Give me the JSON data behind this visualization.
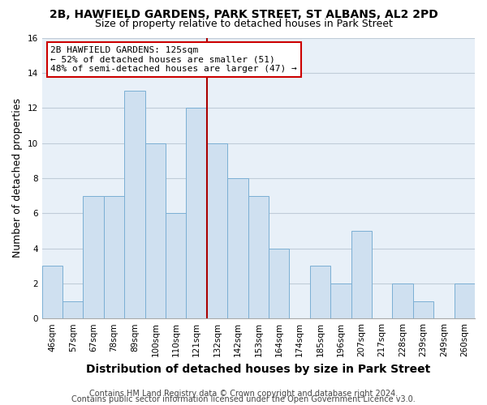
{
  "title": "2B, HAWFIELD GARDENS, PARK STREET, ST ALBANS, AL2 2PD",
  "subtitle": "Size of property relative to detached houses in Park Street",
  "xlabel": "Distribution of detached houses by size in Park Street",
  "ylabel": "Number of detached properties",
  "categories": [
    "46sqm",
    "57sqm",
    "67sqm",
    "78sqm",
    "89sqm",
    "100sqm",
    "110sqm",
    "121sqm",
    "132sqm",
    "142sqm",
    "153sqm",
    "164sqm",
    "174sqm",
    "185sqm",
    "196sqm",
    "207sqm",
    "217sqm",
    "228sqm",
    "239sqm",
    "249sqm",
    "260sqm"
  ],
  "values": [
    3,
    1,
    7,
    7,
    13,
    10,
    6,
    12,
    10,
    8,
    7,
    4,
    0,
    3,
    2,
    5,
    0,
    2,
    1,
    0,
    2
  ],
  "bar_color": "#cfe0f0",
  "bar_edge_color": "#7bafd4",
  "highlight_line_index": 7,
  "highlight_line_color": "#aa0000",
  "ylim": [
    0,
    16
  ],
  "yticks": [
    0,
    2,
    4,
    6,
    8,
    10,
    12,
    14,
    16
  ],
  "annotation_line1": "2B HAWFIELD GARDENS: 125sqm",
  "annotation_line2": "← 52% of detached houses are smaller (51)",
  "annotation_line3": "48% of semi-detached houses are larger (47) →",
  "annotation_box_color": "#cc0000",
  "footer_line1": "Contains HM Land Registry data © Crown copyright and database right 2024.",
  "footer_line2": "Contains public sector information licensed under the Open Government Licence v3.0.",
  "background_color": "#ffffff",
  "plot_bg_color": "#e8f0f8",
  "grid_color": "#c0ccd8",
  "title_fontsize": 10,
  "subtitle_fontsize": 9,
  "axis_label_fontsize": 9,
  "tick_fontsize": 7.5,
  "annotation_fontsize": 8,
  "footer_fontsize": 7
}
